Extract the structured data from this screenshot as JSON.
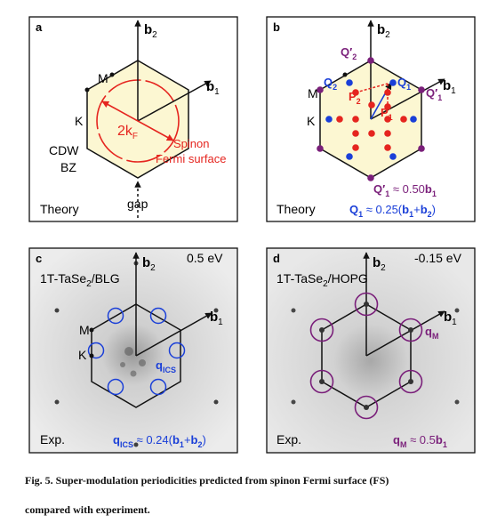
{
  "colors": {
    "bz_fill": "#fcf7d2",
    "fermi_red": "#e5251f",
    "q1_blue": "#1a3fd8",
    "q1p_purple": "#7a1f7a",
    "frame": "#111111",
    "stm_background": "#dcdcdc"
  },
  "panels": {
    "a": {
      "letter": "a",
      "b2": "b",
      "b2_sub": "2",
      "b1": "b",
      "b1_sub": "1",
      "M": "M",
      "K": "K",
      "two_kf": "2k",
      "two_kf_sub": "F",
      "spinon": "Spinon",
      "fermi_surface": "Fermi surface",
      "cdw": "CDW",
      "bz": "BZ",
      "gap": "gap",
      "theory": "Theory"
    },
    "b": {
      "letter": "b",
      "b2": "b",
      "b2_sub": "2",
      "b1": "b",
      "b1_sub": "1",
      "M": "M",
      "K": "K",
      "Q2p": "Q′",
      "Q2p_sub": "2",
      "Q2": "Q",
      "Q2_sub": "2",
      "P2": "P",
      "P2_sub": "2",
      "Q1": "Q",
      "Q1_sub": "1",
      "Q1p": "Q′",
      "Q1p_sub": "1",
      "P1": "P",
      "P1_sub": "1",
      "eq1_lhs": "Q′",
      "eq1_lhs_sub": "1",
      "eq1_rhs": " ≈ 0.50",
      "eq1_b": "b",
      "eq1_b_sub": "1",
      "eq2_lhs": "Q",
      "eq2_lhs_sub": "1",
      "eq2_rhs": " ≈ 0.25(",
      "eq2_b1": "b",
      "eq2_b1_sub": "1",
      "eq2_plus": "+",
      "eq2_b2": "b",
      "eq2_b2_sub": "2",
      "eq2_close": ")",
      "theory": "Theory"
    },
    "c": {
      "letter": "c",
      "energy": "0.5 eV",
      "sample": "1T-TaSe",
      "sample_sub": "2",
      "sample_tail": "/BLG",
      "b2": "b",
      "b2_sub": "2",
      "b1": "b",
      "b1_sub": "1",
      "M": "M",
      "K": "K",
      "qics": "q",
      "qics_sub": "ICS",
      "eq_lhs": "q",
      "eq_lhs_sub": "ICS",
      "eq_rhs": " ≈ 0.24(",
      "eq_b1": "b",
      "eq_b1_sub": "1",
      "eq_plus": "+",
      "eq_b2": "b",
      "eq_b2_sub": "2",
      "eq_close": ")",
      "exp": "Exp."
    },
    "d": {
      "letter": "d",
      "energy": "-0.15 eV",
      "sample": "1T-TaSe",
      "sample_sub": "2",
      "sample_tail": "/HOPG",
      "b2": "b",
      "b2_sub": "2",
      "b1": "b",
      "b1_sub": "1",
      "qm": "q",
      "qm_sub": "M",
      "eq_lhs": "q",
      "eq_lhs_sub": "M",
      "eq_rhs": " ≈ 0.5",
      "eq_b": "b",
      "eq_b_sub": "1",
      "exp": "Exp."
    }
  },
  "caption": {
    "line1": "Fig. 5. Super-modulation periodicities predicted from spinon Fermi surface (FS)",
    "line2": "compared with experiment."
  }
}
